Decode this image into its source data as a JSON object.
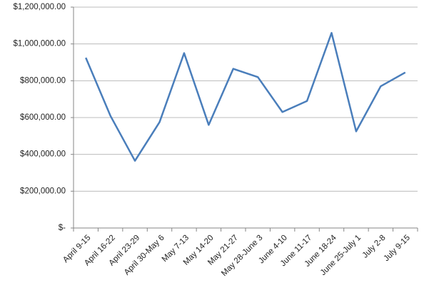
{
  "chart_data": {
    "type": "line",
    "categories": [
      "April 9-15",
      "April 16-22",
      "April 23-29",
      "April 30-May 6",
      "May 7-13",
      "May 14-20",
      "May 21-27",
      "May 28-June 3",
      "June 4-10",
      "June 11-17",
      "June 18-24",
      "June 25-July 1",
      "July 2-8",
      "July 9-15"
    ],
    "series": [
      {
        "color": "#4a7ebb",
        "values": [
          925000,
          610000,
          365000,
          575000,
          950000,
          560000,
          865000,
          820000,
          630000,
          690000,
          1060000,
          525000,
          770000,
          845000
        ]
      }
    ],
    "ylim": [
      0,
      1200000
    ],
    "yticks": [
      {
        "value": 0,
        "label": "$-"
      },
      {
        "value": 200000,
        "label": "$200,000.00"
      },
      {
        "value": 400000,
        "label": "$400,000.00"
      },
      {
        "value": 600000,
        "label": "$600,000.00"
      },
      {
        "value": 800000,
        "label": "$800,000.00"
      },
      {
        "value": 1000000,
        "label": "$1,000,000.00"
      },
      {
        "value": 1200000,
        "label": "$1,200,000.00"
      }
    ],
    "grid": true
  }
}
